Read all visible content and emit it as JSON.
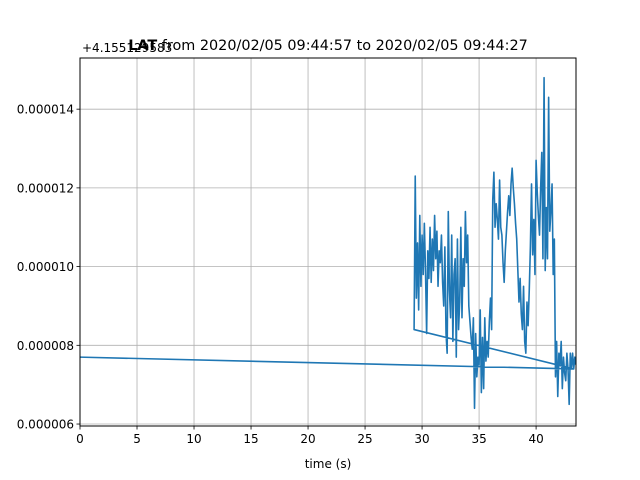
{
  "chart_data": {
    "type": "line",
    "title_bold": "LAT",
    "title_rest": " from 2020/02/05 09:44:57 to 2020/02/05 09:44:27",
    "offset_label": "+4.155129583",
    "xlabel": "time (s)",
    "ylabel": "",
    "xlim": [
      0,
      43.5
    ],
    "ylim": [
      5.95e-06,
      1.53e-05
    ],
    "grid": true,
    "xticks": [
      0,
      5,
      10,
      15,
      20,
      25,
      30,
      35,
      40
    ],
    "xtick_labels": [
      "0",
      "5",
      "10",
      "15",
      "20",
      "25",
      "30",
      "35",
      "40"
    ],
    "yticks": [
      6e-06,
      8e-06,
      1e-05,
      1.2e-05,
      1.4e-05
    ],
    "ytick_labels": [
      "0.000006",
      "0.000008",
      "0.000010",
      "0.000012",
      "0.000014"
    ],
    "line_color": "#1f77b4",
    "series": [
      {
        "x": [
          0,
          43.3,
          29.3,
          29.4,
          29.5,
          29.6,
          29.7,
          29.8,
          29.9,
          30.0,
          30.1,
          30.2,
          30.3,
          30.4,
          30.5,
          30.6,
          30.7,
          30.8,
          30.9,
          31.0,
          31.1,
          31.2,
          31.3,
          31.4,
          31.5,
          31.6,
          31.7,
          31.8,
          31.9,
          32.0,
          32.1,
          32.2,
          32.3,
          32.4,
          32.5,
          32.6,
          32.7,
          32.8,
          32.9,
          33.0,
          33.1,
          33.2,
          33.3,
          33.4,
          33.5,
          33.6,
          33.7,
          33.8,
          33.9,
          34.0,
          34.1,
          34.2,
          34.3,
          34.4,
          34.5,
          34.6,
          34.7,
          34.8,
          34.9,
          35.0,
          35.1,
          35.2,
          35.3,
          35.4,
          35.5,
          35.6,
          35.7,
          35.8,
          35.9,
          36.0,
          36.1,
          36.2,
          36.3,
          36.4,
          36.5,
          36.6,
          36.7,
          36.8,
          36.9,
          37.0,
          37.1,
          37.2,
          37.3,
          37.4,
          37.5,
          37.6,
          37.7,
          37.8,
          37.9,
          38.0,
          38.1,
          38.2,
          38.3,
          38.4,
          38.5,
          38.6,
          38.7,
          38.8,
          38.9,
          39.0,
          39.1,
          39.2,
          39.3,
          39.4,
          39.5,
          39.6,
          39.7,
          39.8,
          39.9,
          40.0,
          40.1,
          40.2,
          40.3,
          40.4,
          40.5,
          40.6,
          40.7,
          40.8,
          40.9,
          41.0,
          41.1,
          41.2,
          41.3,
          41.4,
          41.5,
          41.6,
          41.7,
          41.8,
          41.9,
          42.0,
          42.1,
          42.2,
          42.3,
          42.4,
          42.5,
          42.6,
          42.7,
          42.8,
          42.9,
          43.0,
          43.1,
          43.2,
          43.3,
          43.4,
          43.5
        ],
        "y": [
          7.7e-06,
          7.4e-06,
          8.4e-06,
          1.23e-05,
          9.2e-06,
          1.06e-05,
          8.9e-06,
          1.13e-05,
          9.5e-06,
          1.08e-05,
          9.8e-06,
          1.11e-05,
          9.9e-06,
          8.3e-06,
          1.04e-05,
          9.7e-06,
          1.1e-05,
          9.6e-06,
          1.07e-05,
          9.9e-06,
          1.13e-05,
          1.02e-05,
          1.09e-05,
          9.5e-06,
          1.04e-05,
          1.01e-05,
          1.08e-05,
          9.6e-06,
          9e-06,
          1.05e-05,
          8.3e-06,
          7.8e-06,
          1.14e-05,
          9.4e-06,
          8.7e-06,
          1.08e-05,
          8.1e-06,
          9.8e-06,
          1.02e-05,
          7.7e-06,
          1.07e-05,
          8.4e-06,
          9.1e-06,
          1.1e-05,
          8.7e-06,
          1.02e-05,
          9.5e-06,
          1.14e-05,
          1.01e-05,
          1.08e-05,
          9e-06,
          8.6e-06,
          8.2e-06,
          7.9e-06,
          8.7e-06,
          6.4e-06,
          8.3e-06,
          7.2e-06,
          7.7e-06,
          7.5e-06,
          8.9e-06,
          6.8e-06,
          8.2e-06,
          6.9e-06,
          8.7e-06,
          7.6e-06,
          8.1e-06,
          7.7e-06,
          8.6e-06,
          9.2e-06,
          8.4e-06,
          1.17e-05,
          1.24e-05,
          1.1e-05,
          1.16e-05,
          1.12e-05,
          1.07e-05,
          1.22e-05,
          1.1e-05,
          1.08e-05,
          1.01e-05,
          9.6e-06,
          1.04e-05,
          1.09e-05,
          1.14e-05,
          1.18e-05,
          1.13e-05,
          1.21e-05,
          1.25e-05,
          1.2e-05,
          1.16e-05,
          1.11e-05,
          1.07e-05,
          9.9e-06,
          9.1e-06,
          9.7e-06,
          8.8e-06,
          8.4e-06,
          9.5e-06,
          8.1e-06,
          7.8e-06,
          9.1e-06,
          8.5e-06,
          9.4e-06,
          1.05e-05,
          1.21e-05,
          1.03e-05,
          1.12e-05,
          9.8e-06,
          1.27e-05,
          1.19e-05,
          1.13e-05,
          1.08e-05,
          1.2e-05,
          1.29e-05,
          1.02e-05,
          1.48e-05,
          9.9e-06,
          1.15e-05,
          1.02e-05,
          1.43e-05,
          1.09e-05,
          1.14e-05,
          1.21e-05,
          9.8e-06,
          1.07e-05,
          7.2e-06,
          8.1e-06,
          6.7e-06,
          7.8e-06,
          7.5e-06,
          8.1e-06,
          6.9e-06,
          7.7e-06,
          7.3e-06,
          7.1e-06,
          7.8e-06,
          7.4e-06,
          6.5e-06,
          7.8e-06,
          7.4e-06,
          7.8e-06,
          7.4e-06,
          7.7e-06,
          7.5e-06
        ]
      }
    ]
  }
}
